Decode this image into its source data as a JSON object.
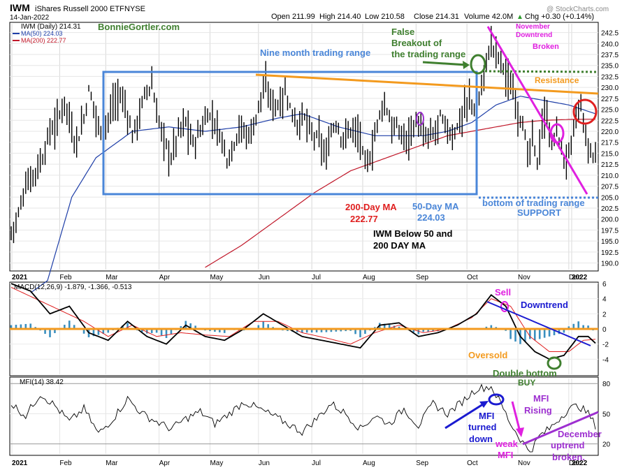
{
  "header": {
    "symbol": "IWM",
    "name": "iShares Russell 2000 ETF",
    "exchange": "NYSE",
    "date": "14-Jan-2022",
    "open": "Open 211.99",
    "high": "High 214.40",
    "low": "Low 210.58",
    "close": "Close 214.31",
    "volume": "Volume 42.0M",
    "change": "Chg +0.30 (+0.14%)",
    "change_arrow": "▲",
    "watermark": "@ StockCharts.com"
  },
  "colors": {
    "price": "#000000",
    "ma50": "#1f3fa8",
    "ma200": "#c0182a",
    "range_box": "#4a86d8",
    "orange": "#f39a1e",
    "magenta": "#e020e0",
    "green": "#3f7f2f",
    "red": "#e01f1f",
    "blue": "#1a1ad0",
    "purple": "#9d2fd0",
    "hist": "#3a8fbf"
  },
  "legend": {
    "price": "IWM (Daily) 214.31",
    "ma50": "MA(50) 224.03",
    "ma200": "MA(200) 222.77",
    "macd": "MACD(12,26,9) -1.879, -1.366, -0.513",
    "mfi": "MFI(14) 38.42"
  },
  "annotations": {
    "bonnie": "BonnieGortler.com",
    "range": "Nine month trading range",
    "false_breakout": [
      "False",
      "Breakout of",
      "the trading range"
    ],
    "nov_downtrend": [
      "November",
      "Downtrend",
      "Broken"
    ],
    "resistance": "Resistance",
    "ma200_label": [
      "200-Day MA",
      "222.77"
    ],
    "ma50_label": [
      "50-Day MA",
      "224.03"
    ],
    "below": [
      "IWM Below 50 and",
      "200 DAY MA"
    ],
    "support": [
      "bottom of trading range",
      "SUPPORT"
    ],
    "sell": "Sell",
    "macd_downtrend": "Downtrend",
    "oversold": "Oversold",
    "double_bottom": [
      "Double bottom",
      "BUY"
    ],
    "mfi_turned": [
      "MFI",
      "turned",
      "down"
    ],
    "mfi_rising": [
      "MFI",
      "Rising"
    ],
    "weak_mfi": [
      "weak",
      "MFI"
    ],
    "dec_uptrend": [
      "December",
      "uptrend",
      "broken."
    ]
  },
  "chart_data": [
    {
      "type": "candlestick",
      "title": "IWM iShares Russell 2000 ETF NYSE",
      "x_range": [
        "2021-01",
        "2022-01-14"
      ],
      "months": [
        "2021",
        "Feb",
        "Mar",
        "Apr",
        "May",
        "Jun",
        "Jul",
        "Aug",
        "Sep",
        "Oct",
        "Nov",
        "Dec",
        "2022"
      ],
      "y_ticks": [
        190.0,
        192.5,
        195.0,
        197.5,
        200.0,
        202.5,
        205.0,
        207.5,
        210.0,
        212.5,
        215.0,
        217.5,
        220.0,
        222.5,
        225.0,
        227.5,
        230.0,
        232.5,
        235.0,
        237.5,
        240.0,
        242.5
      ],
      "ylim": [
        188.5,
        244.5
      ],
      "grid": true,
      "series": [
        {
          "name": "IWM (Daily)",
          "close_path": [
            [
              0,
              197
            ],
            [
              3,
              201
            ],
            [
              6,
              208
            ],
            [
              9,
              210
            ],
            [
              13,
              214
            ],
            [
              16,
              220
            ],
            [
              19,
              222
            ],
            [
              22,
              227
            ],
            [
              24,
              223
            ],
            [
              26,
              218
            ],
            [
              28,
              219
            ],
            [
              30,
              223
            ],
            [
              32,
              229
            ],
            [
              34,
              226
            ],
            [
              36,
              221
            ],
            [
              38,
              220
            ],
            [
              40,
              223
            ],
            [
              43,
              227
            ],
            [
              45,
              228
            ],
            [
              47,
              226
            ],
            [
              50,
              219
            ],
            [
              53,
              224
            ],
            [
              55,
              228
            ],
            [
              58,
              231
            ],
            [
              60,
              224
            ],
            [
              63,
              218
            ],
            [
              66,
              214
            ],
            [
              69,
              220
            ],
            [
              72,
              222
            ],
            [
              75,
              217
            ],
            [
              78,
              220
            ],
            [
              81,
              224
            ],
            [
              84,
              222
            ],
            [
              87,
              218
            ],
            [
              89,
              214
            ],
            [
              91,
              216
            ],
            [
              94,
              221
            ],
            [
              97,
              219
            ],
            [
              100,
              221
            ],
            [
              103,
              228
            ],
            [
              105,
              230
            ],
            [
              107,
              227
            ],
            [
              110,
              226
            ],
            [
              113,
              229
            ],
            [
              116,
              224
            ],
            [
              118,
              222
            ],
            [
              121,
              223
            ],
            [
              124,
              219
            ],
            [
              127,
              218
            ],
            [
              130,
              214
            ],
            [
              132,
              220
            ],
            [
              134,
              222
            ],
            [
              136,
              219
            ],
            [
              138,
              219
            ],
            [
              141,
              221
            ],
            [
              144,
              218
            ],
            [
              146,
              212
            ],
            [
              148,
              214
            ],
            [
              150,
              219
            ],
            [
              153,
              226
            ],
            [
              155,
              225
            ],
            [
              157,
              221
            ],
            [
              160,
              220
            ],
            [
              163,
              218
            ],
            [
              165,
              221
            ],
            [
              168,
              222
            ],
            [
              170,
              218
            ],
            [
              172,
              219
            ],
            [
              174,
              219
            ],
            [
              177,
              223
            ],
            [
              179,
              221
            ],
            [
              182,
              219
            ],
            [
              184,
              221
            ],
            [
              187,
              225
            ],
            [
              189,
              227
            ],
            [
              192,
              225
            ],
            [
              194,
              230
            ],
            [
              196,
              236
            ],
            [
              198,
              240
            ],
            [
              200,
              238
            ],
            [
              203,
              235
            ],
            [
              205,
              231
            ],
            [
              207,
              229
            ],
            [
              209,
              225
            ],
            [
              211,
              222
            ],
            [
              213,
              214
            ],
            [
              215,
              218
            ],
            [
              217,
              213
            ],
            [
              219,
              221
            ],
            [
              221,
              224
            ],
            [
              223,
              216
            ],
            [
              225,
              221
            ],
            [
              227,
              215
            ],
            [
              229,
              213
            ],
            [
              231,
              217
            ],
            [
              233,
              223
            ],
            [
              235,
              226
            ],
            [
              237,
              218
            ],
            [
              239,
              215
            ],
            [
              241,
              214
            ]
          ],
          "high": 244.0,
          "low": 190.0
        },
        {
          "name": "MA(50)",
          "last": 224.03,
          "path": [
            [
              0,
              180
            ],
            [
              15,
              186
            ],
            [
              25,
              205
            ],
            [
              35,
              214
            ],
            [
              50,
              220
            ],
            [
              65,
              221
            ],
            [
              80,
              220
            ],
            [
              95,
              221
            ],
            [
              110,
              223
            ],
            [
              120,
              224
            ],
            [
              135,
              221
            ],
            [
              150,
              219
            ],
            [
              160,
              219
            ],
            [
              170,
              219
            ],
            [
              180,
              220
            ],
            [
              190,
              222
            ],
            [
              200,
              226
            ],
            [
              210,
              228
            ],
            [
              220,
              227
            ],
            [
              230,
              226
            ],
            [
              241,
              224
            ]
          ]
        },
        {
          "name": "MA(200)",
          "last": 222.77,
          "path": [
            [
              80,
              189
            ],
            [
              95,
              194
            ],
            [
              110,
              200
            ],
            [
              125,
              206
            ],
            [
              140,
              211
            ],
            [
              150,
              213
            ],
            [
              160,
              215
            ],
            [
              170,
              217
            ],
            [
              180,
              219
            ],
            [
              190,
              220
            ],
            [
              200,
              221
            ],
            [
              210,
              222
            ],
            [
              220,
              222.5
            ],
            [
              230,
              222.7
            ],
            [
              241,
              222.77
            ]
          ]
        }
      ]
    },
    {
      "type": "line",
      "title": "MACD(12,26,9)",
      "values": {
        "macd": -1.879,
        "signal": -1.366,
        "histogram": -0.513
      },
      "ylim": [
        -6,
        6
      ],
      "y_ticks": [
        -4,
        -2,
        0,
        2,
        4,
        6
      ],
      "series": [
        {
          "name": "MACD",
          "path": [
            [
              0,
              6
            ],
            [
              8,
              5
            ],
            [
              16,
              2
            ],
            [
              24,
              3
            ],
            [
              32,
              -0.5
            ],
            [
              40,
              -1.5
            ],
            [
              48,
              1
            ],
            [
              56,
              -1
            ],
            [
              64,
              -2
            ],
            [
              72,
              0.5
            ],
            [
              80,
              -1
            ],
            [
              88,
              -1.5
            ],
            [
              96,
              0
            ],
            [
              104,
              2
            ],
            [
              112,
              0.5
            ],
            [
              120,
              -1
            ],
            [
              128,
              -1.5
            ],
            [
              136,
              -2
            ],
            [
              144,
              -2.5
            ],
            [
              152,
              0.5
            ],
            [
              160,
              0.8
            ],
            [
              168,
              -1
            ],
            [
              176,
              -0.5
            ],
            [
              184,
              0.5
            ],
            [
              192,
              2
            ],
            [
              198,
              4.5
            ],
            [
              204,
              3
            ],
            [
              210,
              -1
            ],
            [
              216,
              -3
            ],
            [
              222,
              -4
            ],
            [
              228,
              -3.5
            ],
            [
              234,
              -1
            ],
            [
              238,
              -1
            ],
            [
              241,
              -1.879
            ]
          ]
        },
        {
          "name": "Signal",
          "path": [
            [
              0,
              5.5
            ],
            [
              10,
              4
            ],
            [
              20,
              2.5
            ],
            [
              30,
              1
            ],
            [
              40,
              -1
            ],
            [
              50,
              0.5
            ],
            [
              60,
              -1
            ],
            [
              70,
              -0.5
            ],
            [
              80,
              -0.8
            ],
            [
              90,
              -1
            ],
            [
              100,
              1
            ],
            [
              110,
              1
            ],
            [
              120,
              -0.5
            ],
            [
              130,
              -1.2
            ],
            [
              140,
              -2
            ],
            [
              150,
              -0.5
            ],
            [
              160,
              0.5
            ],
            [
              170,
              -0.5
            ],
            [
              180,
              0
            ],
            [
              190,
              1.5
            ],
            [
              198,
              4
            ],
            [
              206,
              3
            ],
            [
              214,
              -1
            ],
            [
              222,
              -3
            ],
            [
              230,
              -3
            ],
            [
              236,
              -1.5
            ],
            [
              241,
              -1.366
            ]
          ]
        }
      ]
    },
    {
      "type": "line",
      "title": "MFI(14)",
      "last": 38.42,
      "ylim": [
        10,
        85
      ],
      "y_ticks": [
        20,
        50,
        80
      ],
      "series": [
        {
          "name": "MFI",
          "path": [
            [
              0,
              60
            ],
            [
              6,
              48
            ],
            [
              12,
              70
            ],
            [
              18,
              58
            ],
            [
              24,
              42
            ],
            [
              30,
              55
            ],
            [
              36,
              30
            ],
            [
              42,
              45
            ],
            [
              48,
              65
            ],
            [
              54,
              50
            ],
            [
              60,
              42
            ],
            [
              66,
              35
            ],
            [
              72,
              45
            ],
            [
              78,
              52
            ],
            [
              84,
              40
            ],
            [
              90,
              50
            ],
            [
              96,
              62
            ],
            [
              102,
              55
            ],
            [
              108,
              48
            ],
            [
              114,
              40
            ],
            [
              120,
              32
            ],
            [
              126,
              45
            ],
            [
              132,
              60
            ],
            [
              138,
              50
            ],
            [
              144,
              35
            ],
            [
              150,
              48
            ],
            [
              156,
              40
            ],
            [
              162,
              55
            ],
            [
              168,
              38
            ],
            [
              174,
              60
            ],
            [
              180,
              50
            ],
            [
              186,
              62
            ],
            [
              192,
              75
            ],
            [
              198,
              77
            ],
            [
              202,
              60
            ],
            [
              206,
              40
            ],
            [
              210,
              25
            ],
            [
              214,
              12
            ],
            [
              218,
              28
            ],
            [
              222,
              35
            ],
            [
              226,
              45
            ],
            [
              230,
              55
            ],
            [
              234,
              58
            ],
            [
              238,
              50
            ],
            [
              241,
              38.42
            ]
          ]
        }
      ]
    }
  ]
}
